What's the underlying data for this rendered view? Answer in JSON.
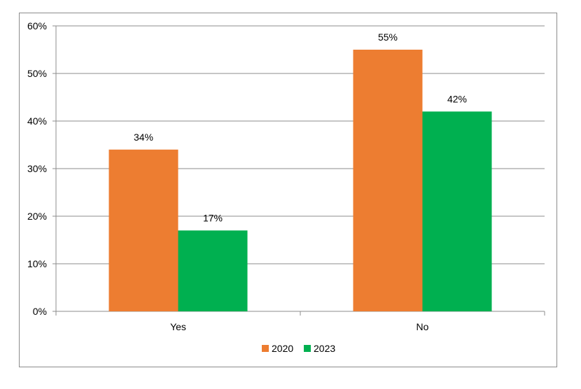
{
  "chart_data": {
    "type": "bar",
    "categories": [
      "Yes",
      "No"
    ],
    "series": [
      {
        "name": "2020",
        "values": [
          34,
          55
        ],
        "color": "#ED7D31"
      },
      {
        "name": "2023",
        "values": [
          17,
          42
        ],
        "color": "#00B050"
      }
    ],
    "data_labels": [
      [
        "34%",
        "55%"
      ],
      [
        "17%",
        "42%"
      ]
    ],
    "y_ticks": [
      "0%",
      "10%",
      "20%",
      "30%",
      "40%",
      "50%",
      "60%"
    ],
    "ylim": [
      0,
      60
    ],
    "grid": true,
    "legend_position": "bottom",
    "title": "",
    "xlabel": "",
    "ylabel": ""
  }
}
